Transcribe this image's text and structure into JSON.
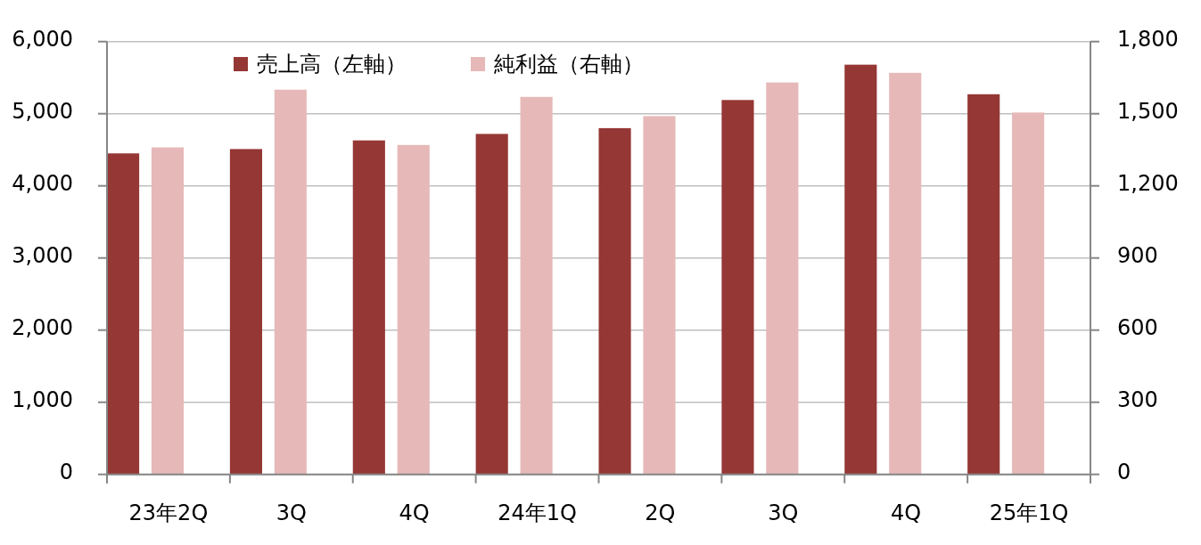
{
  "chart_data": {
    "type": "bar",
    "categories": [
      "23年2Q",
      "3Q",
      "4Q",
      "24年1Q",
      "2Q",
      "3Q",
      "4Q",
      "25年1Q"
    ],
    "series": [
      {
        "name": "売上高（左軸）",
        "color": "#953735",
        "values": [
          4450,
          4510,
          4630,
          4720,
          4800,
          5190,
          5680,
          5270
        ]
      },
      {
        "name": "純利益（右軸）",
        "color": "#e6b9b8",
        "axis": "y2",
        "values": [
          1360,
          1600,
          1370,
          1570,
          1490,
          1630,
          1670,
          1505
        ]
      }
    ],
    "ylim": [
      0,
      6000
    ],
    "yticks": [
      0,
      {
        "value": 1000,
        "label": "1,000"
      },
      {
        "value": 2000,
        "label": "2,000"
      },
      {
        "value": 3000,
        "label": "3,000"
      },
      {
        "value": 4000,
        "label": "4,000"
      },
      {
        "value": 5000,
        "label": "5,000"
      },
      {
        "value": 6000,
        "label": "6,000"
      }
    ],
    "y2lim": [
      0,
      1800
    ],
    "y2ticks": [
      0,
      300,
      600,
      900,
      {
        "value": 1200,
        "label": "1,200"
      },
      {
        "value": 1500,
        "label": "1,500"
      },
      {
        "value": 1800,
        "label": "1,800"
      }
    ],
    "grid": "y",
    "legend": "top left"
  }
}
